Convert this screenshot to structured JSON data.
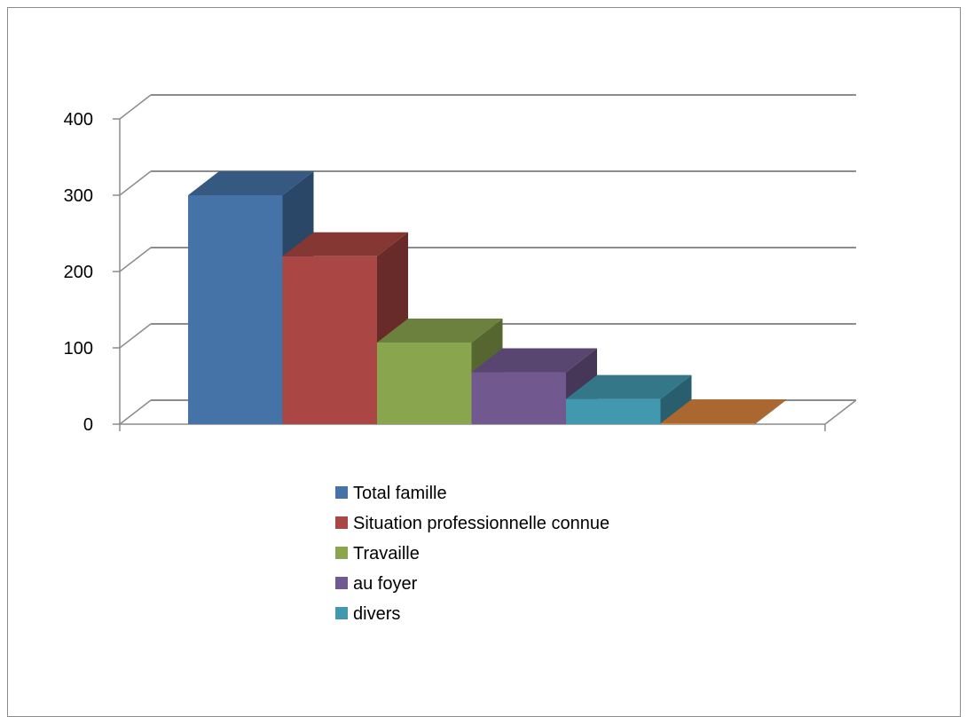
{
  "chart_data": {
    "type": "bar",
    "title": "",
    "xlabel": "",
    "ylabel": "",
    "ylim": [
      0,
      400
    ],
    "yticks": [
      0,
      100,
      200,
      300,
      400
    ],
    "grid": true,
    "three_d": true,
    "legend_position": "bottom",
    "series": [
      {
        "name": "Total famille",
        "value": 300,
        "color": "#4572A7",
        "in_legend": true
      },
      {
        "name": "Situation professionnelle connue",
        "value": 220,
        "color": "#AA4643",
        "in_legend": true
      },
      {
        "name": "Travaille",
        "value": 107,
        "color": "#89A54E",
        "in_legend": true
      },
      {
        "name": "au foyer",
        "value": 68,
        "color": "#71588F",
        "in_legend": true
      },
      {
        "name": "divers",
        "value": 33,
        "color": "#4198AF",
        "in_legend": true
      },
      {
        "name": "",
        "value": 1,
        "color": "#DB843D",
        "in_legend": false
      }
    ]
  }
}
